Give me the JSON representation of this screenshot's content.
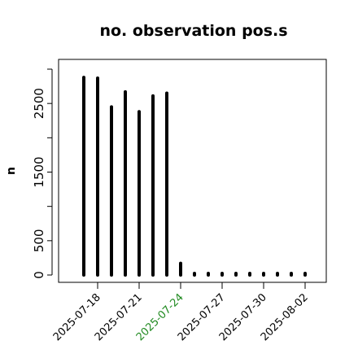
{
  "chart_data": {
    "type": "bar",
    "title": "no. observation pos.s",
    "xlabel": "",
    "ylabel": "n",
    "x": [
      "2025-07-17",
      "2025-07-18",
      "2025-07-19",
      "2025-07-20",
      "2025-07-21",
      "2025-07-22",
      "2025-07-23",
      "2025-07-24",
      "2025-07-25",
      "2025-07-26",
      "2025-07-27",
      "2025-07-28",
      "2025-07-29",
      "2025-07-30",
      "2025-07-31",
      "2025-08-01",
      "2025-08-02"
    ],
    "values": [
      2880,
      2870,
      2450,
      2670,
      2380,
      2610,
      2650,
      170,
      10,
      10,
      10,
      10,
      10,
      10,
      10,
      10,
      10
    ],
    "ylim": [
      0,
      3000
    ],
    "yticks": [
      0,
      500,
      1500,
      2500
    ],
    "xticks": [
      "2025-07-18",
      "2025-07-21",
      "2025-07-24",
      "2025-07-27",
      "2025-07-30",
      "2025-08-02"
    ],
    "highlight_tick": "2025-07-24",
    "colors": {
      "bars": "#000000",
      "highlight": "#228b22"
    },
    "grid": false,
    "legend": "none"
  }
}
